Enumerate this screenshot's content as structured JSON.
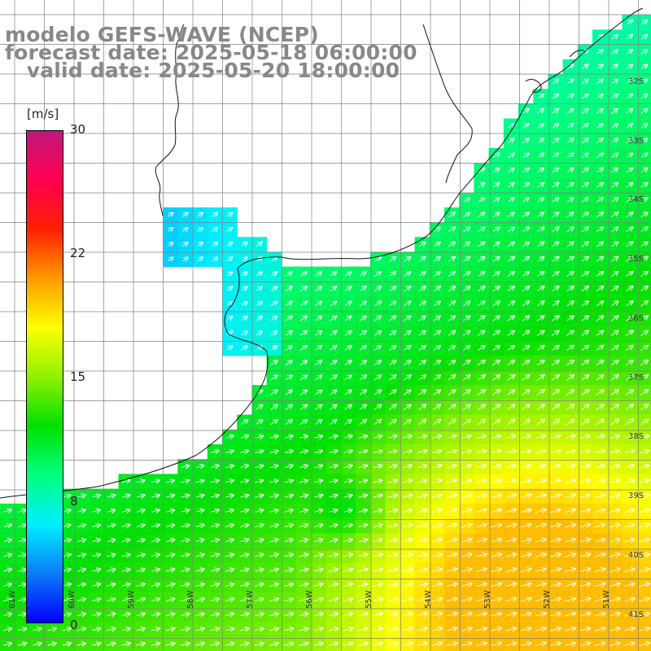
{
  "title": {
    "line1": "modelo GEFS-WAVE (NCEP)",
    "line2": "forecast date: 2025-05-18 06:00:00",
    "line3": "   valid date: 2025-05-20 18:00:00"
  },
  "colorbar": {
    "unit": "[m/s]",
    "ticks": [
      "30",
      "22",
      "15",
      "8",
      "0"
    ],
    "colors": [
      "#0000ff",
      "#0a7cf5",
      "#00f0ff",
      "#00ff80",
      "#00e000",
      "#90f000",
      "#ffff00",
      "#ff9a00",
      "#ff2000",
      "#ff0050",
      "#c0187a"
    ]
  },
  "map": {
    "variable": "wind speed and direction",
    "land_color": "#ffffff",
    "lat_labels": [
      "32S",
      "33S",
      "34S",
      "35S",
      "36S",
      "37S",
      "38S",
      "39S",
      "40S",
      "41S"
    ],
    "lon_labels": [
      "61W",
      "60W",
      "59W",
      "58W",
      "57W",
      "56W",
      "55W",
      "54W",
      "53W",
      "52W",
      "51W"
    ]
  }
}
